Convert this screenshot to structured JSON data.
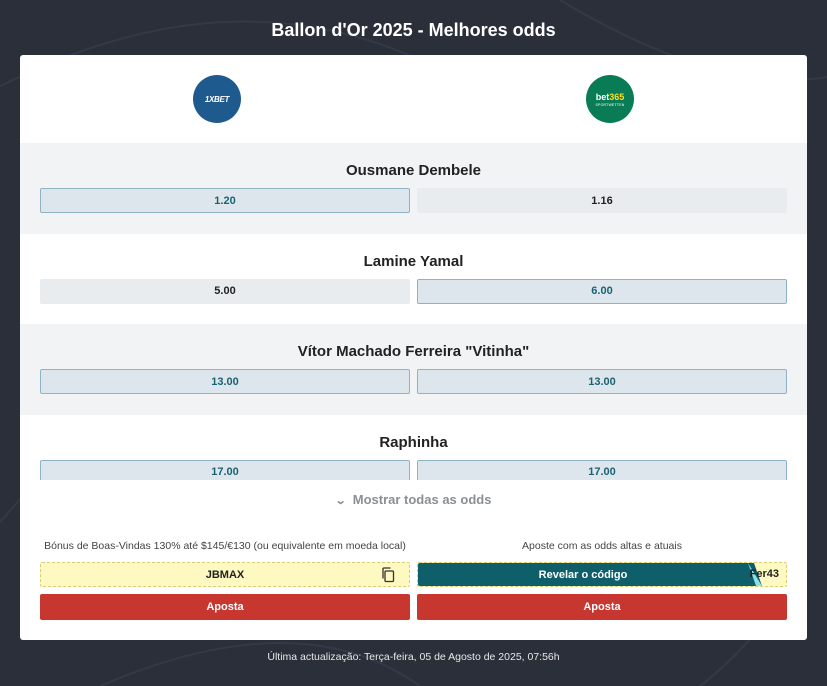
{
  "page_title": "Ballon d'Or 2025 - Melhores odds",
  "bookmakers": [
    {
      "name": "1XBET",
      "logo_text": "1XBET",
      "color": "#1f5a8f"
    },
    {
      "name": "bet365",
      "logo_text": "bet365",
      "logo_sub": "SPORTWETTEN",
      "color": "#0a7c55"
    }
  ],
  "rows": [
    {
      "name": "Ousmane Dembele",
      "odds": [
        "1.20",
        "1.16"
      ],
      "best": [
        true,
        false
      ]
    },
    {
      "name": "Lamine Yamal",
      "odds": [
        "5.00",
        "6.00"
      ],
      "best": [
        false,
        true
      ]
    },
    {
      "name": "Vítor Machado Ferreira \"Vitinha\"",
      "odds": [
        "13.00",
        "13.00"
      ],
      "best": [
        true,
        true
      ]
    },
    {
      "name": "Raphinha",
      "odds": [
        "17.00",
        "17.00"
      ],
      "best": [
        true,
        true
      ]
    }
  ],
  "show_all_label": "Mostrar todas as odds",
  "bonus": [
    {
      "text": "Bónus de Boas-Vindas 130% até $145/€130 (ou equivalente em moeda local)",
      "code": "JBMAX",
      "bet_label": "Aposta"
    },
    {
      "text": "Aposte com as odds altas e atuais",
      "reveal_label": "Revelar o código",
      "code": "Fer43",
      "bet_label": "Aposta"
    }
  ],
  "footer": "Última actualização: Terça-feira, 05 de Agosto de 2025, 07:56h",
  "colors": {
    "best_text": "#1b6272",
    "bet_button": "#c7372f",
    "reveal_button": "#0e5f6a",
    "code_bg": "#fef9c0"
  }
}
